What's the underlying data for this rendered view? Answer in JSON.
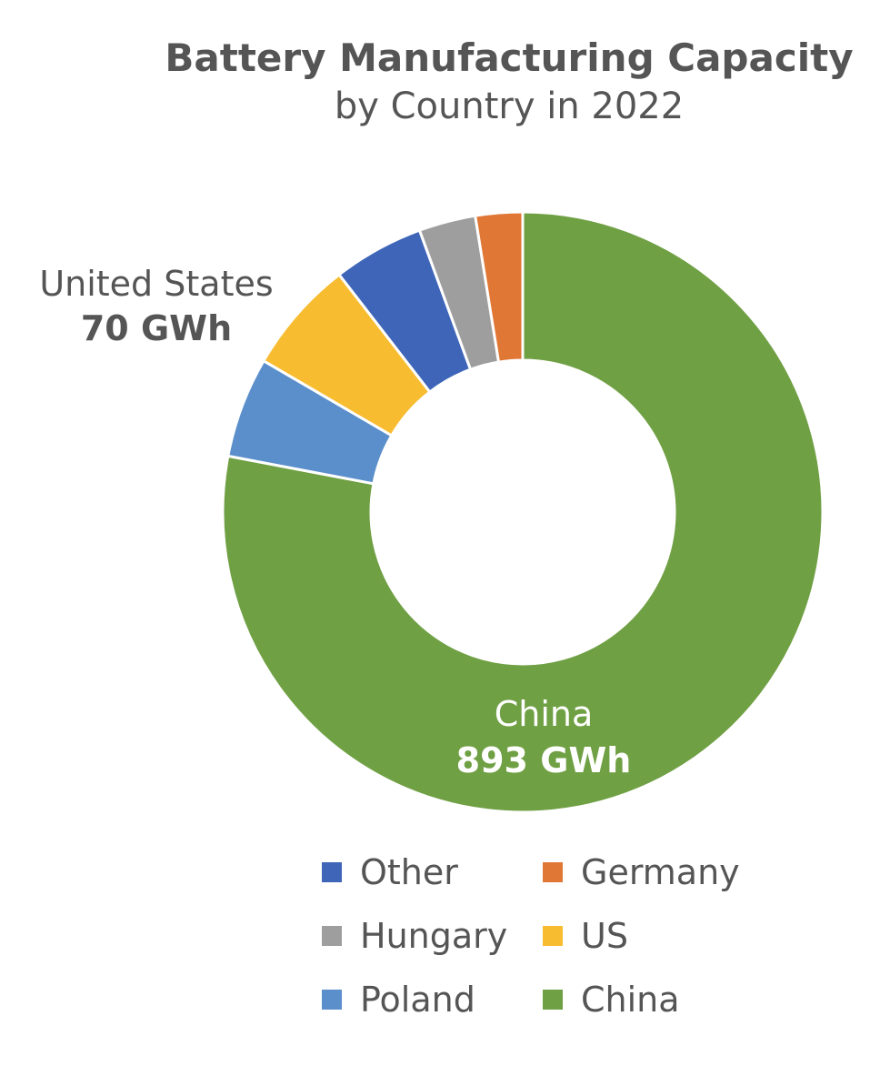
{
  "chart_data": {
    "type": "pie",
    "title": "Battery Manufacturing Capacity",
    "subtitle": "by Country in 2022",
    "donut": true,
    "legend_position": "bottom",
    "slices": [
      {
        "label": "China",
        "value": 893,
        "color": "#70A044"
      },
      {
        "label": "Poland",
        "value": 62,
        "color": "#5B8FCB"
      },
      {
        "label": "US",
        "value": 70,
        "color": "#F7BC30"
      },
      {
        "label": "Other",
        "value": 56,
        "color": "#3E65B8"
      },
      {
        "label": "Hungary",
        "value": 35,
        "color": "#9E9E9E"
      },
      {
        "label": "Germany",
        "value": 29,
        "color": "#E07735"
      }
    ],
    "legend": [
      "Other",
      "Germany",
      "Hungary",
      "US",
      "Poland",
      "China"
    ],
    "data_labels": [
      {
        "slice": "US",
        "name": "United States",
        "value_text": "70 GWh"
      },
      {
        "slice": "China",
        "name": "China",
        "value_text": "893 GWh"
      }
    ]
  }
}
